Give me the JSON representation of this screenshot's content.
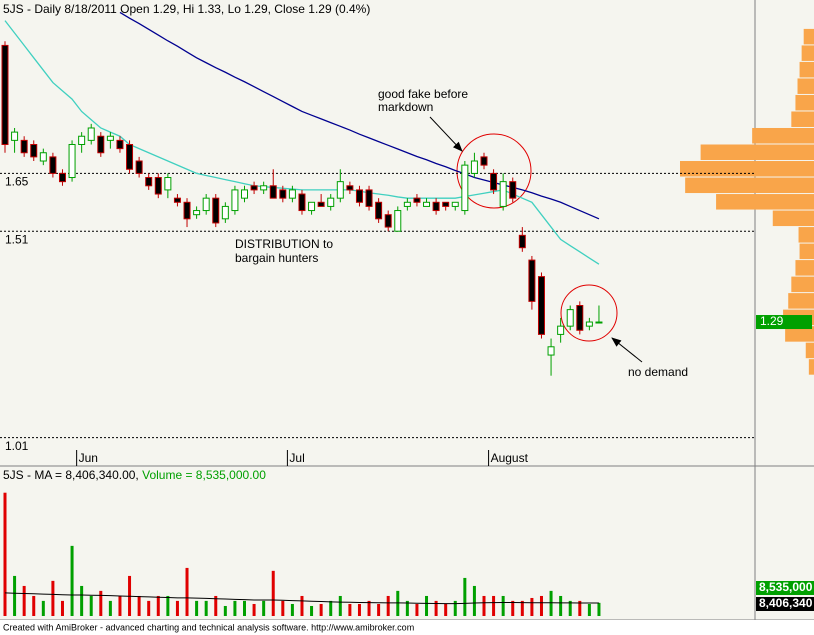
{
  "header": "5JS - Daily 8/18/2011 Open 1.29, Hi 1.33, Lo 1.29, Close 1.29 (0.4%)",
  "footer": "Created with AmiBroker - advanced charting and technical analysis software. http://www.amibroker.com",
  "chart_data": [
    {
      "type": "candlestick",
      "categories": [
        null,
        null,
        null,
        null,
        null,
        null,
        null,
        null,
        "Jun",
        null,
        null,
        null,
        null,
        null,
        null,
        null,
        null,
        null,
        null,
        null,
        null,
        null,
        null,
        null,
        null,
        null,
        null,
        null,
        null,
        null,
        "Jul",
        null,
        null,
        null,
        null,
        null,
        null,
        null,
        null,
        null,
        null,
        null,
        null,
        null,
        null,
        null,
        null,
        null,
        null,
        null,
        null,
        "August",
        null,
        null,
        null,
        null,
        null,
        null,
        null,
        null,
        null,
        null,
        null
      ],
      "open": [
        1.96,
        1.73,
        1.73,
        1.72,
        1.68,
        1.69,
        1.65,
        1.64,
        1.72,
        1.73,
        1.74,
        1.73,
        1.73,
        1.72,
        1.68,
        1.64,
        1.64,
        1.61,
        1.59,
        1.58,
        1.55,
        1.56,
        1.59,
        1.54,
        1.56,
        1.59,
        1.62,
        1.61,
        1.62,
        1.61,
        1.59,
        1.6,
        1.56,
        1.58,
        1.57,
        1.59,
        1.62,
        1.61,
        1.61,
        1.58,
        1.55,
        1.51,
        1.57,
        1.59,
        1.57,
        1.58,
        1.58,
        1.57,
        1.56,
        1.65,
        1.69,
        1.65,
        1.57,
        1.63,
        1.5,
        1.44,
        1.4,
        1.21,
        1.26,
        1.28,
        1.33,
        1.28,
        1.29
      ],
      "high": [
        1.97,
        1.76,
        1.74,
        1.73,
        1.71,
        1.7,
        1.66,
        1.73,
        1.75,
        1.77,
        1.75,
        1.75,
        1.74,
        1.73,
        1.69,
        1.65,
        1.65,
        1.65,
        1.6,
        1.59,
        1.57,
        1.6,
        1.6,
        1.58,
        1.62,
        1.62,
        1.63,
        1.63,
        1.66,
        1.62,
        1.62,
        1.61,
        1.58,
        1.6,
        1.6,
        1.66,
        1.63,
        1.62,
        1.62,
        1.59,
        1.56,
        1.57,
        1.59,
        1.6,
        1.59,
        1.59,
        1.58,
        1.58,
        1.68,
        1.7,
        1.7,
        1.66,
        1.65,
        1.64,
        1.52,
        1.45,
        1.41,
        1.25,
        1.3,
        1.33,
        1.34,
        1.3,
        1.33
      ],
      "low": [
        1.7,
        1.7,
        1.69,
        1.68,
        1.67,
        1.64,
        1.62,
        1.63,
        1.7,
        1.72,
        1.69,
        1.71,
        1.7,
        1.65,
        1.64,
        1.61,
        1.59,
        1.59,
        1.57,
        1.52,
        1.54,
        1.55,
        1.52,
        1.53,
        1.55,
        1.58,
        1.6,
        1.6,
        1.59,
        1.58,
        1.58,
        1.55,
        1.55,
        1.57,
        1.56,
        1.58,
        1.6,
        1.57,
        1.56,
        1.53,
        1.51,
        1.51,
        1.56,
        1.57,
        1.57,
        1.55,
        1.56,
        1.56,
        1.55,
        1.64,
        1.66,
        1.6,
        1.56,
        1.58,
        1.46,
        1.32,
        1.25,
        1.16,
        1.24,
        1.27,
        1.26,
        1.27,
        1.29
      ],
      "close": [
        1.72,
        1.75,
        1.7,
        1.69,
        1.7,
        1.65,
        1.63,
        1.72,
        1.74,
        1.76,
        1.7,
        1.74,
        1.71,
        1.66,
        1.65,
        1.62,
        1.6,
        1.64,
        1.58,
        1.54,
        1.56,
        1.59,
        1.53,
        1.57,
        1.61,
        1.61,
        1.61,
        1.62,
        1.59,
        1.59,
        1.61,
        1.56,
        1.58,
        1.57,
        1.59,
        1.63,
        1.61,
        1.58,
        1.57,
        1.54,
        1.52,
        1.56,
        1.58,
        1.58,
        1.58,
        1.56,
        1.57,
        1.58,
        1.67,
        1.68,
        1.67,
        1.61,
        1.63,
        1.59,
        1.47,
        1.34,
        1.26,
        1.23,
        1.28,
        1.32,
        1.27,
        1.29,
        1.29
      ],
      "up_color": "#00a000",
      "down_color": "#c00000",
      "ylim": [
        0.98,
        2.07
      ],
      "yticks": [
        1.01,
        1.51,
        1.65
      ],
      "grid": true,
      "overlays": [
        {
          "color": "#40d0c0",
          "values": [
            2.02,
            1.99,
            1.96,
            1.93,
            1.9,
            1.87,
            1.85,
            1.83,
            1.8,
            1.78,
            1.76,
            1.75,
            1.74,
            1.72,
            1.71,
            1.7,
            1.69,
            1.68,
            1.67,
            1.66,
            1.65,
            1.645,
            1.64,
            1.635,
            1.63,
            1.625,
            1.62,
            1.618,
            1.616,
            1.614,
            1.612,
            1.61,
            1.61,
            1.61,
            1.61,
            1.61,
            1.61,
            1.607,
            1.603,
            1.6,
            1.597,
            1.593,
            1.59,
            1.59,
            1.59,
            1.59,
            1.59,
            1.59,
            1.594,
            1.598,
            1.602,
            1.606,
            1.61,
            1.6,
            1.59,
            1.58,
            1.55,
            1.52,
            1.49,
            1.475,
            1.46,
            1.445,
            1.43
          ]
        },
        {
          "color": "#000090",
          "values": [
            null,
            null,
            null,
            null,
            null,
            null,
            null,
            null,
            null,
            null,
            null,
            null,
            2.04,
            2.026,
            2.013,
            1.999,
            1.985,
            1.971,
            1.958,
            1.944,
            1.93,
            1.918,
            1.906,
            1.895,
            1.883,
            1.872,
            1.86,
            1.848,
            1.836,
            1.824,
            1.812,
            1.8,
            1.791,
            1.782,
            1.773,
            1.764,
            1.755,
            1.745,
            1.736,
            1.727,
            1.718,
            1.709,
            1.7,
            1.691,
            1.683,
            1.674,
            1.666,
            1.657,
            1.649,
            1.64,
            1.634,
            1.628,
            1.622,
            1.616,
            1.61,
            1.603,
            1.595,
            1.588,
            1.58,
            1.57,
            1.56,
            1.55,
            1.54
          ]
        }
      ],
      "volume_profile": {
        "color": "#f9a54a",
        "prices": [
          1.98,
          1.94,
          1.9,
          1.86,
          1.82,
          1.78,
          1.74,
          1.7,
          1.66,
          1.62,
          1.58,
          1.54,
          1.5,
          1.46,
          1.42,
          1.38,
          1.34,
          1.3,
          1.26,
          1.22,
          1.18
        ],
        "values": [
          10,
          12,
          14,
          16,
          18,
          22,
          60,
          110,
          130,
          125,
          95,
          40,
          15,
          14,
          18,
          22,
          25,
          30,
          28,
          8,
          5
        ]
      },
      "annotations": [
        "good fake before",
        "markdown",
        "DISTRIBUTION to",
        "bargain hunters",
        "no demand"
      ]
    },
    {
      "type": "bar",
      "title": "5JS - MA = 8,406,340.00,",
      "title_volume": "Volume = 8,535,000.00",
      "up_color": "#00a000",
      "down_color": "#e00000",
      "ylim": [
        0,
        85000000
      ],
      "values": [
        80000000,
        26000000,
        19500000,
        13000000,
        9800000,
        22800000,
        9800000,
        45500000,
        19500000,
        13000000,
        16300000,
        9800000,
        13000000,
        26000000,
        13000000,
        9800000,
        13000000,
        13000000,
        9800000,
        31200000,
        9800000,
        9800000,
        13000000,
        6500000,
        9800000,
        9800000,
        7800000,
        9800000,
        29300000,
        9800000,
        7800000,
        13000000,
        6500000,
        7800000,
        9800000,
        13000000,
        7800000,
        7800000,
        9800000,
        7800000,
        13000000,
        16300000,
        9800000,
        7800000,
        13000000,
        9800000,
        7800000,
        9800000,
        24700000,
        19500000,
        13000000,
        13000000,
        13000000,
        9800000,
        9800000,
        11700000,
        13000000,
        16300000,
        13000000,
        9800000,
        9800000,
        7800000,
        8535000
      ],
      "value_labels": [
        null,
        null,
        null,
        null,
        null,
        null,
        null,
        null,
        null,
        null,
        null,
        null,
        null,
        null,
        null,
        null,
        null,
        null,
        null,
        null,
        null,
        null,
        null,
        null,
        null,
        null,
        null,
        null,
        null,
        null,
        null,
        null,
        null,
        null,
        null,
        null,
        null,
        null,
        null,
        null,
        null,
        null,
        null,
        null,
        null,
        null,
        null,
        null,
        null,
        null,
        null,
        null,
        null,
        null,
        null,
        null,
        null,
        null,
        null,
        null,
        null,
        null,
        "8,535,000"
      ],
      "series": [
        {
          "color": "#000000",
          "values": [
            15000000,
            14800000,
            14600000,
            14400000,
            14200000,
            14000000,
            13800000,
            13600000,
            13600000,
            13500000,
            13400000,
            13200000,
            13000000,
            12800000,
            12600000,
            12400000,
            12200000,
            12000000,
            11800000,
            11800000,
            11600000,
            11400000,
            11200000,
            11000000,
            10800000,
            10600000,
            10400000,
            10400000,
            10400000,
            10200000,
            10000000,
            9800000,
            9600000,
            9400000,
            9200000,
            9000000,
            8900000,
            8800000,
            8700000,
            8600000,
            8500000,
            8500000,
            8400000,
            8300000,
            8200000,
            8100000,
            8000000,
            8000000,
            8200000,
            8400000,
            8600000,
            8700000,
            8800000,
            8800000,
            8700000,
            8600000,
            8600000,
            8600000,
            8500000,
            8500000,
            8450000,
            8420000,
            8406340
          ],
          "value_labels": [
            null,
            null,
            null,
            null,
            null,
            null,
            null,
            null,
            null,
            null,
            null,
            null,
            null,
            null,
            null,
            null,
            null,
            null,
            null,
            null,
            null,
            null,
            null,
            null,
            null,
            null,
            null,
            null,
            null,
            null,
            null,
            null,
            null,
            null,
            null,
            null,
            null,
            null,
            null,
            null,
            null,
            null,
            null,
            null,
            null,
            null,
            null,
            null,
            null,
            null,
            null,
            null,
            null,
            null,
            null,
            null,
            null,
            null,
            null,
            null,
            null,
            null,
            "8,406,340"
          ]
        }
      ]
    }
  ]
}
